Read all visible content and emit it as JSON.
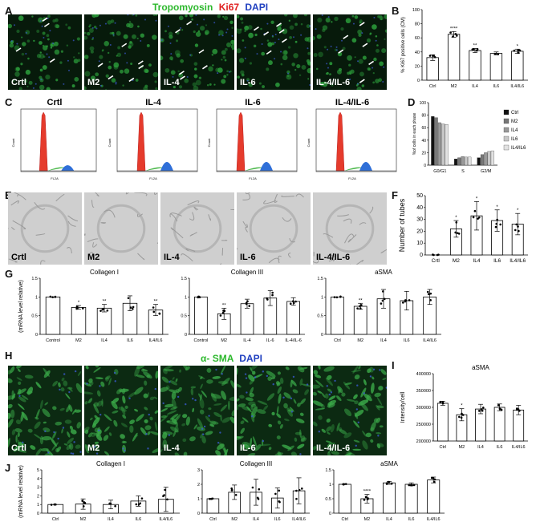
{
  "panel_labels": {
    "A": "A",
    "B": "B",
    "C": "C",
    "D": "D",
    "E": "E",
    "F": "F",
    "G": "G",
    "H": "H",
    "I": "I",
    "J": "J"
  },
  "header_A": {
    "tropomyosin": "Tropomyosin",
    "ki67": "Ki67",
    "dapi": "DAPI",
    "colors": {
      "tropomyosin": "#2db82d",
      "ki67": "#e02020",
      "dapi": "#2040c0"
    }
  },
  "header_H": {
    "asma": "α- SMA",
    "dapi": "DAPI"
  },
  "images_A": [
    "Crtl",
    "M2",
    "IL-4",
    "IL-6",
    "IL-4/IL-6"
  ],
  "flow_titles": [
    "Crtl",
    "IL-4",
    "IL-6",
    "IL-4/IL-6"
  ],
  "flow_axis": {
    "ylabel": "Count",
    "xlabel": "FL2A"
  },
  "images_E": [
    "Crtl",
    "M2",
    "IL-4",
    "IL-6",
    "IL-4/IL-6"
  ],
  "images_H": [
    "Crtl",
    "M2",
    "IL-4",
    "IL-6",
    "IL-4/IL-6"
  ],
  "chart_data": [
    {
      "id": "B",
      "type": "bar",
      "ylabel": "% Ki67 positive cells (CM)",
      "categories": [
        "Ctrl",
        "M2",
        "IL4",
        "IL6",
        "IL4/IL6"
      ],
      "values": [
        32,
        65,
        42,
        38,
        41
      ],
      "errors": [
        4,
        4,
        3,
        2,
        3
      ],
      "ylim": [
        0,
        100
      ],
      "yticks": [
        0,
        20,
        40,
        60,
        80,
        100
      ],
      "sig": [
        "",
        "****",
        "**",
        "",
        "*"
      ]
    },
    {
      "id": "D",
      "type": "bar",
      "ylabel": "%of cells in each phase",
      "categories": [
        "G0/G1",
        "S",
        "G2/M"
      ],
      "series": [
        {
          "name": "Ctrl",
          "color": "#111111",
          "values": [
            78,
            10,
            12
          ]
        },
        {
          "name": "M2",
          "color": "#777777",
          "values": [
            76,
            12,
            17
          ]
        },
        {
          "name": "IL4",
          "color": "#999999",
          "values": [
            68,
            14,
            20
          ]
        },
        {
          "name": "IL6",
          "color": "#c8c8c8",
          "values": [
            66,
            13,
            22
          ]
        },
        {
          "name": "IL4/IL6",
          "color": "#e2e2e2",
          "values": [
            65,
            13,
            23
          ]
        }
      ],
      "ylim": [
        0,
        100
      ],
      "yticks": [
        0,
        20,
        40,
        60,
        80,
        100
      ]
    },
    {
      "id": "F",
      "type": "bar",
      "ylabel": "Number of tubes",
      "categories": [
        "Crtl",
        "M2",
        "IL4",
        "IL6",
        "IL4/IL6"
      ],
      "values": [
        0,
        22,
        33,
        29,
        26
      ],
      "errors": [
        0,
        7,
        12,
        9,
        9
      ],
      "ylim": [
        0,
        50
      ],
      "yticks": [
        0,
        10,
        20,
        30,
        40,
        50
      ],
      "sig": [
        "",
        "*",
        "*",
        "*",
        "*"
      ]
    },
    {
      "id": "G1",
      "type": "bar",
      "title": "Collagen I",
      "ylabel": "(mRNA level relative)",
      "categories": [
        "Control",
        "M2",
        "IL4",
        "IL6",
        "IL4/IL6"
      ],
      "values": [
        1.0,
        0.72,
        0.7,
        0.83,
        0.65
      ],
      "errors": [
        0,
        0.05,
        0.1,
        0.2,
        0.15
      ],
      "ylim": [
        0,
        1.5
      ],
      "yticks": [
        0,
        0.5,
        1.0,
        1.5
      ],
      "sig": [
        "",
        "*",
        "**",
        "",
        "**"
      ]
    },
    {
      "id": "G2",
      "type": "bar",
      "title": "Collagen III",
      "ylabel": "",
      "categories": [
        "Control",
        "M2",
        "IL-4",
        "IL-6",
        "IL-4/IL-6"
      ],
      "values": [
        1.0,
        0.55,
        0.82,
        0.97,
        0.88
      ],
      "errors": [
        0,
        0.15,
        0.12,
        0.2,
        0.1
      ],
      "ylim": [
        0,
        1.5
      ],
      "yticks": [
        0,
        0.5,
        1.0,
        1.5
      ],
      "sig": [
        "",
        "**",
        "",
        "",
        ""
      ]
    },
    {
      "id": "G3",
      "type": "bar",
      "title": "aSMA",
      "ylabel": "",
      "categories": [
        "Ctrl",
        "M2",
        "IL4",
        "IL6",
        "IL4/IL6"
      ],
      "values": [
        1.0,
        0.75,
        0.95,
        0.9,
        1.0
      ],
      "errors": [
        0,
        0.08,
        0.25,
        0.25,
        0.2
      ],
      "ylim": [
        0,
        1.5
      ],
      "yticks": [
        0,
        0.5,
        1.0,
        1.5
      ],
      "sig": [
        "",
        "**",
        "",
        "",
        ""
      ]
    },
    {
      "id": "I",
      "type": "bar",
      "title": "aSMA",
      "ylabel": "Intensity/cell",
      "categories": [
        "Ctrl",
        "M2",
        "IL4",
        "IL6",
        "IL4/IL6"
      ],
      "values": [
        312000,
        278000,
        295000,
        300000,
        292000
      ],
      "errors": [
        6000,
        18000,
        14000,
        10000,
        14000
      ],
      "ylim": [
        200000,
        400000
      ],
      "yticks": [
        200000,
        250000,
        300000,
        350000,
        400000
      ],
      "sig": [
        "",
        "*",
        "",
        "",
        ""
      ]
    },
    {
      "id": "J1",
      "type": "bar",
      "title": "Collagen I",
      "ylabel": "(mRNA level relative)",
      "categories": [
        "Ctrl",
        "M2",
        "IL4",
        "IL6",
        "IL4/IL6"
      ],
      "values": [
        1.0,
        1.05,
        1.0,
        1.4,
        1.6
      ],
      "errors": [
        0,
        0.6,
        0.5,
        0.6,
        1.4
      ],
      "ylim": [
        0,
        5
      ],
      "yticks": [
        0,
        1,
        2,
        3,
        4,
        5
      ],
      "sig": [
        "",
        "",
        "",
        "",
        ""
      ]
    },
    {
      "id": "J2",
      "type": "bar",
      "title": "Collagen III",
      "ylabel": "",
      "categories": [
        "Ctrl",
        "M2",
        "IL4",
        "IL6",
        "IL4/IL6"
      ],
      "values": [
        1.0,
        1.45,
        1.45,
        1.05,
        1.55
      ],
      "errors": [
        0,
        0.5,
        0.9,
        0.7,
        0.9
      ],
      "ylim": [
        0,
        3
      ],
      "yticks": [
        0,
        1,
        2,
        3
      ],
      "sig": [
        "",
        "",
        "",
        "",
        ""
      ]
    },
    {
      "id": "J3",
      "type": "bar",
      "title": "aSMA",
      "ylabel": "",
      "categories": [
        "Ctrl",
        "M2",
        "IL4",
        "IL6",
        "IL4/IL6"
      ],
      "values": [
        1.0,
        0.5,
        1.05,
        1.0,
        1.15
      ],
      "errors": [
        0,
        0.15,
        0.05,
        0.05,
        0.1
      ],
      "ylim": [
        0,
        1.5
      ],
      "yticks": [
        0,
        0.5,
        1.0,
        1.5
      ],
      "sig": [
        "",
        "****",
        "",
        "",
        ""
      ]
    }
  ]
}
